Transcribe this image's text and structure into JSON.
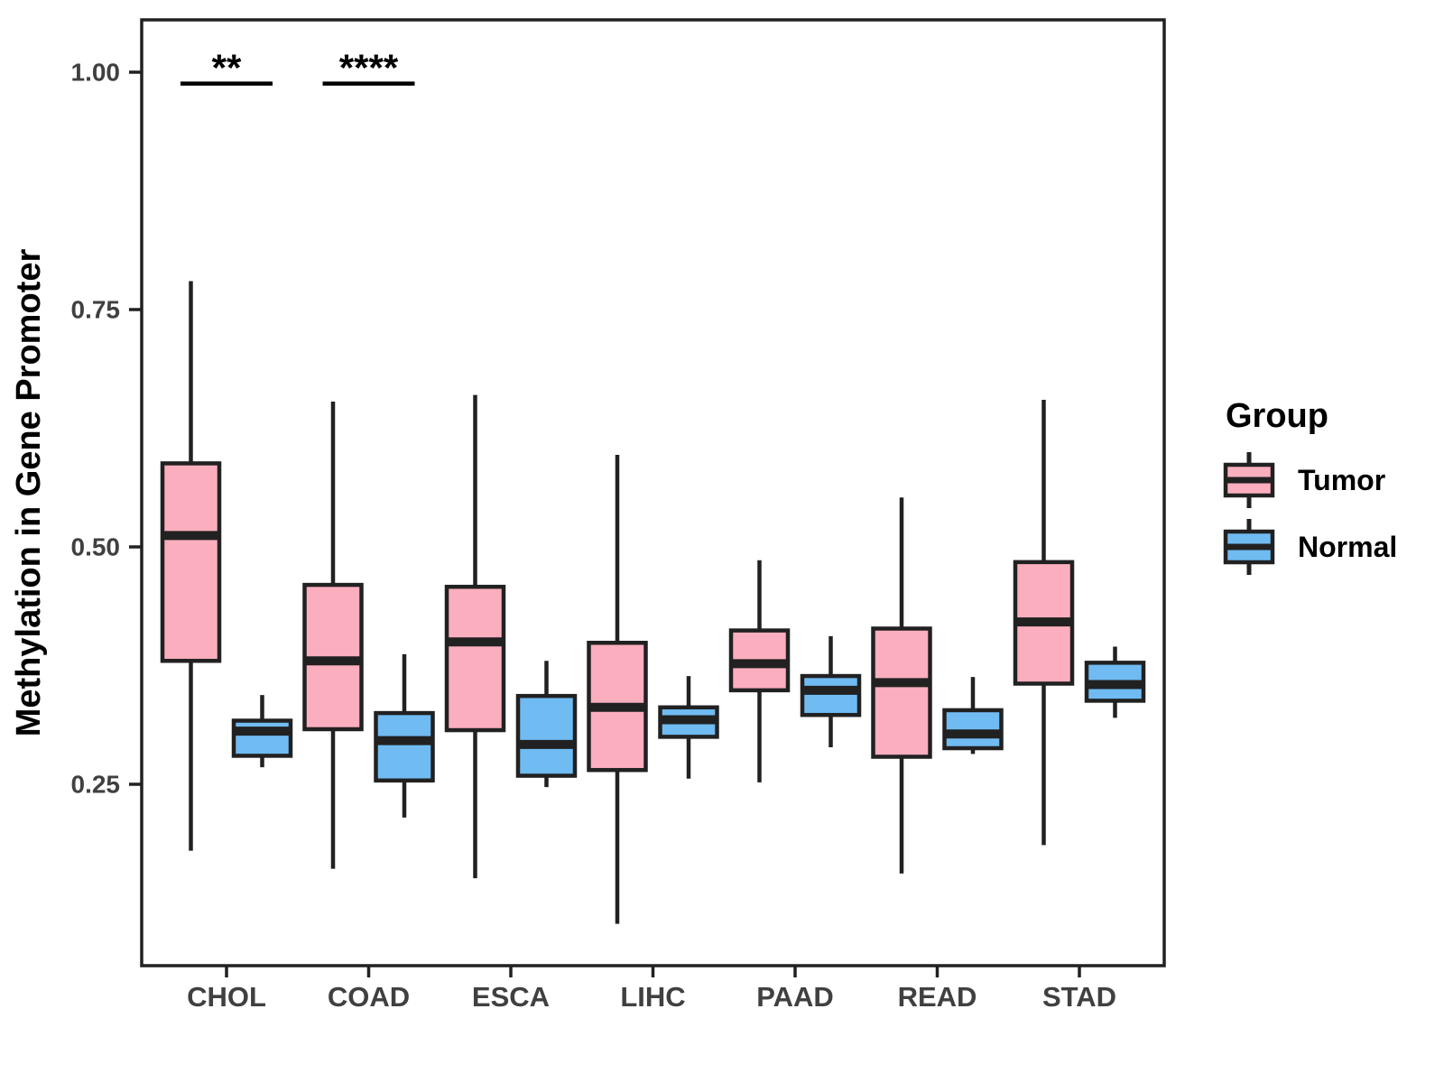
{
  "chart_data": {
    "type": "boxplot",
    "title": "",
    "xlabel": "",
    "ylabel": "Methylation in Gene Promoter",
    "ylim": [
      0.06,
      1.05
    ],
    "grid": false,
    "y_ticks": [
      1.0,
      0.75,
      0.5,
      0.25
    ],
    "y_tick_labels": [
      "1.00",
      "0.75",
      "0.50",
      "0.25"
    ],
    "categories": [
      "CHOL",
      "COAD",
      "ESCA",
      "LIHC",
      "PAAD",
      "READ",
      "STAD"
    ],
    "legend": {
      "title": "Group",
      "position": "right",
      "items": [
        {
          "label": "Tumor",
          "color": "#FBAEBE"
        },
        {
          "label": "Normal",
          "color": "#70BBF2"
        }
      ]
    },
    "series": [
      {
        "name": "Tumor",
        "color": "#FBAEBE",
        "boxes": [
          {
            "category": "CHOL",
            "low": 0.18,
            "q1": 0.38,
            "median": 0.512,
            "q3": 0.588,
            "high": 0.78
          },
          {
            "category": "COAD",
            "low": 0.161,
            "q1": 0.308,
            "median": 0.38,
            "q3": 0.46,
            "high": 0.653
          },
          {
            "category": "ESCA",
            "low": 0.151,
            "q1": 0.307,
            "median": 0.4,
            "q3": 0.458,
            "high": 0.66
          },
          {
            "category": "LIHC",
            "low": 0.103,
            "q1": 0.265,
            "median": 0.331,
            "q3": 0.399,
            "high": 0.597
          },
          {
            "category": "PAAD",
            "low": 0.252,
            "q1": 0.349,
            "median": 0.377,
            "q3": 0.412,
            "high": 0.486
          },
          {
            "category": "READ",
            "low": 0.156,
            "q1": 0.279,
            "median": 0.357,
            "q3": 0.414,
            "high": 0.552
          },
          {
            "category": "STAD",
            "low": 0.186,
            "q1": 0.356,
            "median": 0.421,
            "q3": 0.484,
            "high": 0.655
          }
        ]
      },
      {
        "name": "Normal",
        "color": "#70BBF2",
        "boxes": [
          {
            "category": "CHOL",
            "low": 0.268,
            "q1": 0.28,
            "median": 0.306,
            "q3": 0.317,
            "high": 0.344
          },
          {
            "category": "COAD",
            "low": 0.215,
            "q1": 0.254,
            "median": 0.296,
            "q3": 0.325,
            "high": 0.387
          },
          {
            "category": "ESCA",
            "low": 0.247,
            "q1": 0.259,
            "median": 0.292,
            "q3": 0.343,
            "high": 0.38
          },
          {
            "category": "LIHC",
            "low": 0.256,
            "q1": 0.3,
            "median": 0.318,
            "q3": 0.331,
            "high": 0.364
          },
          {
            "category": "PAAD",
            "low": 0.289,
            "q1": 0.323,
            "median": 0.349,
            "q3": 0.364,
            "high": 0.406
          },
          {
            "category": "READ",
            "low": 0.282,
            "q1": 0.288,
            "median": 0.303,
            "q3": 0.328,
            "high": 0.363
          },
          {
            "category": "STAD",
            "low": 0.32,
            "q1": 0.338,
            "median": 0.355,
            "q3": 0.378,
            "high": 0.395
          }
        ]
      }
    ],
    "annotations": [
      {
        "category": "CHOL",
        "label": "**",
        "bracket_y": 0.988
      },
      {
        "category": "COAD",
        "label": "****",
        "bracket_y": 0.988
      }
    ],
    "colors": {
      "tumor_fill": "#FBAEBE",
      "normal_fill": "#70BBF2",
      "line": "#212121",
      "tick_text": "#404040",
      "title_text": "#000000",
      "panel_background": "#ffffff"
    }
  }
}
